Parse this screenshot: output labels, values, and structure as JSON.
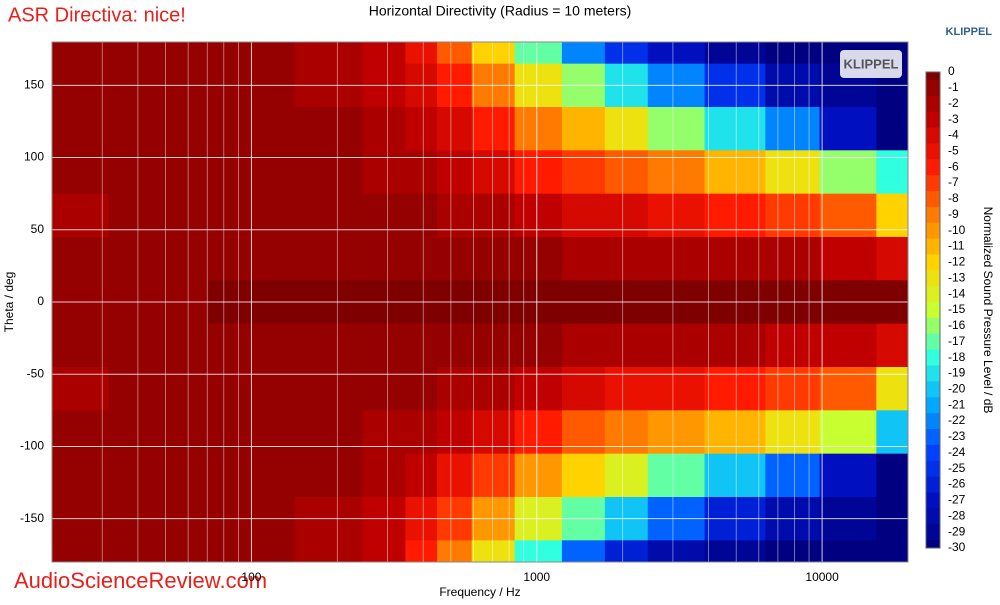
{
  "watermark_title": "ASR Directiva: nice!",
  "brand": "KLIPPEL",
  "logo": "KLIPPEL",
  "watermark_site": "AudioScienceReview.com",
  "chart_data": {
    "type": "heatmap",
    "title": "Horizontal Directivity (Radius = 10 meters)",
    "x_label": "Frequency / Hz",
    "y_label": "Theta / deg",
    "colorbar_label": "Normalized Sound Pressure Level / dB",
    "log_x": true,
    "grid": true,
    "xlim": [
      20,
      20000
    ],
    "xticks": [
      100,
      1000,
      10000
    ],
    "xminorticks": [
      20,
      30,
      40,
      50,
      60,
      70,
      80,
      90,
      200,
      300,
      400,
      500,
      600,
      700,
      800,
      900,
      2000,
      3000,
      4000,
      5000,
      6000,
      7000,
      8000,
      9000,
      20000
    ],
    "ylim": [
      -180,
      180
    ],
    "yticks": [
      -150,
      -100,
      -50,
      0,
      50,
      100,
      150
    ],
    "zlim": [
      -30,
      0
    ],
    "zticks": [
      0,
      -1,
      -2,
      -3,
      -4,
      -5,
      -6,
      -7,
      -8,
      -9,
      -10,
      -11,
      -12,
      -13,
      -14,
      -15,
      -16,
      -17,
      -18,
      -19,
      -20,
      -21,
      -22,
      -23,
      -24,
      -25,
      -26,
      -27,
      -28,
      -29,
      -30
    ],
    "colormap": [
      "#7f0000",
      "#c00000",
      "#ff1a00",
      "#ff7a00",
      "#ffd200",
      "#c8ff30",
      "#30ffe0",
      "#00a8ff",
      "#0040ff",
      "#0010c0",
      "#000080"
    ],
    "x": [
      20,
      50,
      100,
      200,
      300,
      400,
      500,
      700,
      1000,
      1500,
      2000,
      3000,
      5000,
      8000,
      12000,
      20000
    ],
    "y": [
      180,
      150,
      120,
      90,
      60,
      30,
      0,
      -30,
      -60,
      -90,
      -120,
      -150,
      -180
    ],
    "z": [
      [
        -1,
        -1,
        -1,
        -2,
        -3,
        -5,
        -8,
        -12,
        -17,
        -22,
        -25,
        -27,
        -29,
        -30,
        -30,
        -30
      ],
      [
        -1,
        -1,
        -1,
        -2,
        -3,
        -4,
        -6,
        -9,
        -13,
        -16,
        -19,
        -22,
        -25,
        -28,
        -29,
        -30
      ],
      [
        -1,
        -1,
        -1,
        -1,
        -2,
        -3,
        -4,
        -6,
        -9,
        -11,
        -13,
        -16,
        -19,
        -22,
        -27,
        -30
      ],
      [
        -1,
        -1,
        -1,
        -1,
        -2,
        -2,
        -3,
        -4,
        -6,
        -7,
        -8,
        -9,
        -11,
        -13,
        -16,
        -18
      ],
      [
        -2,
        -1,
        -1,
        -1,
        -1,
        -1,
        -2,
        -2,
        -3,
        -4,
        -4,
        -5,
        -6,
        -7,
        -8,
        -12
      ],
      [
        -1,
        -1,
        -1,
        -1,
        -1,
        -1,
        -1,
        -1,
        -1,
        -2,
        -2,
        -2,
        -2,
        -2,
        -3,
        -4
      ],
      [
        -1,
        -1,
        0,
        0,
        0,
        0,
        0,
        0,
        0,
        0,
        0,
        0,
        0,
        0,
        0,
        0
      ],
      [
        -1,
        -1,
        -1,
        -1,
        -1,
        -1,
        -1,
        -1,
        -1,
        -2,
        -2,
        -2,
        -2,
        -3,
        -3,
        -4
      ],
      [
        -2,
        -1,
        -1,
        -1,
        -1,
        -1,
        -2,
        -2,
        -3,
        -4,
        -5,
        -5,
        -6,
        -7,
        -8,
        -13
      ],
      [
        -1,
        -1,
        -1,
        -1,
        -2,
        -2,
        -3,
        -4,
        -6,
        -8,
        -9,
        -10,
        -11,
        -13,
        -15,
        -20
      ],
      [
        -1,
        -1,
        -1,
        -1,
        -2,
        -3,
        -5,
        -7,
        -10,
        -12,
        -14,
        -17,
        -20,
        -23,
        -27,
        -30
      ],
      [
        -1,
        -1,
        -1,
        -2,
        -3,
        -5,
        -7,
        -10,
        -14,
        -17,
        -20,
        -23,
        -26,
        -28,
        -29,
        -30
      ],
      [
        -1,
        -1,
        -1,
        -2,
        -3,
        -6,
        -9,
        -13,
        -18,
        -23,
        -26,
        -28,
        -29,
        -30,
        -30,
        -30
      ]
    ]
  }
}
